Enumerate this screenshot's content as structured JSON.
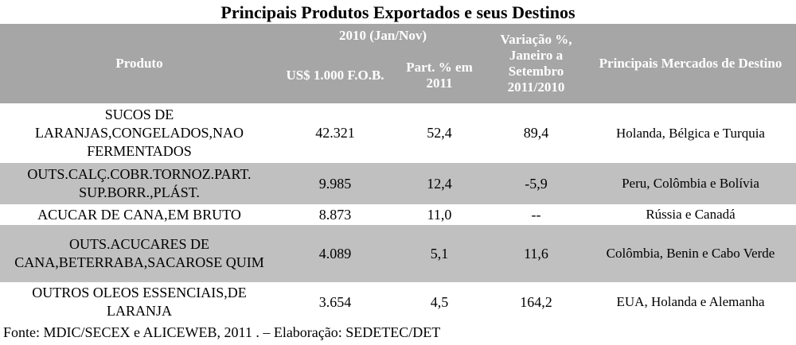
{
  "table": {
    "title": "Principais Produtos Exportados e seus Destinos",
    "header": {
      "product": "Produto",
      "period": "2010 (Jan/Nov)",
      "usd": "US$ 1.000 F.O.B.",
      "part": "Part. % em 2011",
      "variation": "Variação %, Janeiro a Setembro 2011/2010",
      "markets": "Principais Mercados de Destino"
    },
    "rows": [
      [
        "SUCOS DE LARANJAS,CONGELADOS,NAO FERMENTADOS",
        "42.321",
        "52,4",
        "89,4",
        "Holanda, Bélgica e Turquia"
      ],
      [
        "OUTS.CALÇ.COBR.TORNOZ.PART. SUP.BORR.,PLÁST.",
        "9.985",
        "12,4",
        "-5,9",
        "Peru, Colômbia e Bolívia"
      ],
      [
        "ACUCAR DE CANA,EM BRUTO",
        "8.873",
        "11,0",
        "--",
        "Rússia e Canadá"
      ],
      [
        "OUTS.ACUCARES DE CANA,BETERRABA,SACAROSE QUIM",
        "4.089",
        "5,1",
        "11,6",
        "Colômbia, Benin e Cabo Verde"
      ],
      [
        "OUTROS OLEOS ESSENCIAIS,DE LARANJA",
        "3.654",
        "4,5",
        "164,2",
        "EUA, Holanda e Alemanha"
      ]
    ],
    "footer": "Fonte: MDIC/SECEX e ALICEWEB, 2011 . – Elaboração: SEDETEC/DET"
  }
}
